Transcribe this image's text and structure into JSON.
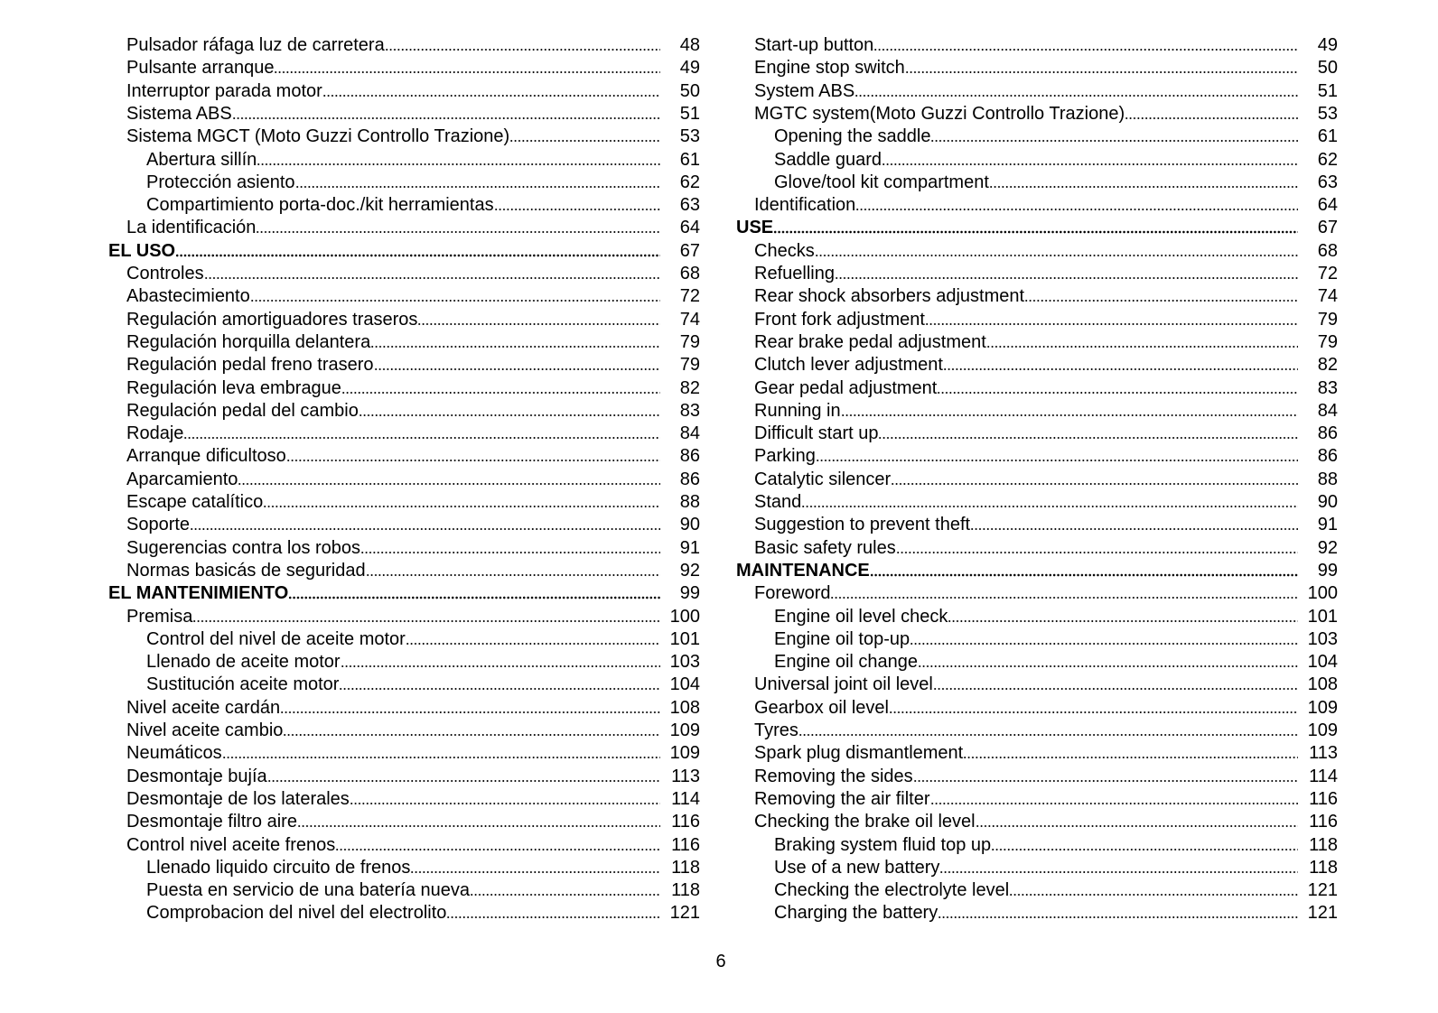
{
  "columns": [
    {
      "entries": [
        {
          "text": "Pulsador ráfaga luz de carretera",
          "page": 48,
          "style": "item"
        },
        {
          "text": "Pulsante arranque",
          "page": 49,
          "style": "item"
        },
        {
          "text": "Interruptor parada motor",
          "page": 50,
          "style": "item"
        },
        {
          "text": "Sistema ABS",
          "page": 51,
          "style": "item"
        },
        {
          "text": "Sistema MGCT (Moto Guzzi Controllo Trazione)",
          "page": 53,
          "style": "item"
        },
        {
          "text": "Abertura sillín",
          "page": 61,
          "style": "subitem"
        },
        {
          "text": "Protección asiento",
          "page": 62,
          "style": "subitem"
        },
        {
          "text": "Compartimiento porta-doc./kit herramientas",
          "page": 63,
          "style": "subitem"
        },
        {
          "text": "La identificación",
          "page": 64,
          "style": "item"
        },
        {
          "text": "EL USO",
          "page": 67,
          "style": "heading"
        },
        {
          "text": "Controles",
          "page": 68,
          "style": "item"
        },
        {
          "text": "Abastecimiento",
          "page": 72,
          "style": "item"
        },
        {
          "text": "Regulación amortiguadores traseros",
          "page": 74,
          "style": "item"
        },
        {
          "text": "Regulación horquilla delantera",
          "page": 79,
          "style": "item"
        },
        {
          "text": "Regulación pedal freno trasero",
          "page": 79,
          "style": "item"
        },
        {
          "text": "Regulación leva embrague",
          "page": 82,
          "style": "item"
        },
        {
          "text": "Regulación pedal del cambio",
          "page": 83,
          "style": "item"
        },
        {
          "text": "Rodaje",
          "page": 84,
          "style": "item"
        },
        {
          "text": "Arranque dificultoso",
          "page": 86,
          "style": "item"
        },
        {
          "text": "Aparcamiento",
          "page": 86,
          "style": "item"
        },
        {
          "text": "Escape catalítico",
          "page": 88,
          "style": "item"
        },
        {
          "text": "Soporte",
          "page": 90,
          "style": "item"
        },
        {
          "text": "Sugerencias contra los robos",
          "page": 91,
          "style": "item"
        },
        {
          "text": "Normas basicás de seguridad",
          "page": 92,
          "style": "item"
        },
        {
          "text": "EL MANTENIMIENTO",
          "page": 99,
          "style": "heading"
        },
        {
          "text": "Premisa",
          "page": 100,
          "style": "item"
        },
        {
          "text": "Control del nivel de aceite motor",
          "page": 101,
          "style": "subitem"
        },
        {
          "text": "Llenado de aceite motor",
          "page": 103,
          "style": "subitem"
        },
        {
          "text": "Sustitución aceite motor",
          "page": 104,
          "style": "subitem"
        },
        {
          "text": "Nivel aceite cardán",
          "page": 108,
          "style": "item"
        },
        {
          "text": "Nivel aceite cambio",
          "page": 109,
          "style": "item"
        },
        {
          "text": "Neumáticos",
          "page": 109,
          "style": "item"
        },
        {
          "text": "Desmontaje bujía",
          "page": 113,
          "style": "item"
        },
        {
          "text": "Desmontaje de los laterales",
          "page": 114,
          "style": "item"
        },
        {
          "text": "Desmontaje filtro aire",
          "page": 116,
          "style": "item"
        },
        {
          "text": "Control nivel aceite frenos",
          "page": 116,
          "style": "item"
        },
        {
          "text": "Llenado liquido circuito de frenos",
          "page": 118,
          "style": "subitem"
        },
        {
          "text": "Puesta en servicio de una batería nueva",
          "page": 118,
          "style": "subitem"
        },
        {
          "text": "Comprobacion del nivel del electrolito",
          "page": 121,
          "style": "subitem"
        }
      ]
    },
    {
      "entries": [
        {
          "text": "Start-up button",
          "page": 49,
          "style": "item"
        },
        {
          "text": "Engine stop switch",
          "page": 50,
          "style": "item"
        },
        {
          "text": "System ABS",
          "page": 51,
          "style": "item"
        },
        {
          "text": "MGTC system(Moto Guzzi Controllo Trazione)",
          "page": 53,
          "style": "item"
        },
        {
          "text": "Opening the saddle",
          "page": 61,
          "style": "subitem"
        },
        {
          "text": "Saddle guard",
          "page": 62,
          "style": "subitem"
        },
        {
          "text": "Glove/tool kit compartment",
          "page": 63,
          "style": "subitem"
        },
        {
          "text": "Identification",
          "page": 64,
          "style": "item"
        },
        {
          "text": "USE",
          "page": 67,
          "style": "heading"
        },
        {
          "text": "Checks",
          "page": 68,
          "style": "item"
        },
        {
          "text": "Refuelling",
          "page": 72,
          "style": "item"
        },
        {
          "text": "Rear shock absorbers adjustment",
          "page": 74,
          "style": "item"
        },
        {
          "text": "Front fork adjustment",
          "page": 79,
          "style": "item"
        },
        {
          "text": "Rear brake pedal adjustment",
          "page": 79,
          "style": "item"
        },
        {
          "text": "Clutch lever adjustment",
          "page": 82,
          "style": "item"
        },
        {
          "text": "Gear pedal adjustment",
          "page": 83,
          "style": "item"
        },
        {
          "text": "Running in",
          "page": 84,
          "style": "item"
        },
        {
          "text": "Difficult start up",
          "page": 86,
          "style": "item"
        },
        {
          "text": "Parking",
          "page": 86,
          "style": "item"
        },
        {
          "text": "Catalytic silencer",
          "page": 88,
          "style": "item"
        },
        {
          "text": "Stand",
          "page": 90,
          "style": "item"
        },
        {
          "text": "Suggestion to prevent theft",
          "page": 91,
          "style": "item"
        },
        {
          "text": "Basic safety rules",
          "page": 92,
          "style": "item"
        },
        {
          "text": "MAINTENANCE",
          "page": 99,
          "style": "heading"
        },
        {
          "text": "Foreword",
          "page": 100,
          "style": "item"
        },
        {
          "text": "Engine oil level check",
          "page": 101,
          "style": "subitem"
        },
        {
          "text": "Engine oil top-up",
          "page": 103,
          "style": "subitem"
        },
        {
          "text": "Engine oil change",
          "page": 104,
          "style": "subitem"
        },
        {
          "text": "Universal joint oil level",
          "page": 108,
          "style": "item"
        },
        {
          "text": "Gearbox oil level",
          "page": 109,
          "style": "item"
        },
        {
          "text": "Tyres",
          "page": 109,
          "style": "item"
        },
        {
          "text": "Spark plug dismantlement",
          "page": 113,
          "style": "item"
        },
        {
          "text": "Removing the sides",
          "page": 114,
          "style": "item"
        },
        {
          "text": "Removing the air filter",
          "page": 116,
          "style": "item"
        },
        {
          "text": "Checking the brake oil level",
          "page": 116,
          "style": "item"
        },
        {
          "text": "Braking system fluid top up",
          "page": 118,
          "style": "subitem"
        },
        {
          "text": "Use of a new battery",
          "page": 118,
          "style": "subitem"
        },
        {
          "text": "Checking the electrolyte level",
          "page": 121,
          "style": "subitem"
        },
        {
          "text": "Charging the battery",
          "page": 121,
          "style": "subitem"
        }
      ]
    }
  ],
  "page_number": 6
}
